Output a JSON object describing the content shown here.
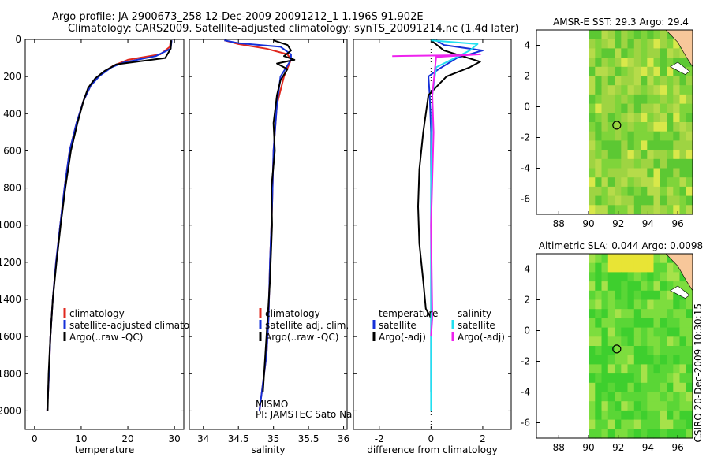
{
  "header": {
    "line1": "Argo profile: JA 2900673_258 12-Dec-2009 20091212_1 1.196S 91.902E",
    "line2": "Climatology: CARS2009. Satellite-adjusted climatology: synTS_20091214.nc (1.4d later)"
  },
  "colors": {
    "climatology": "#e0281e",
    "satellite": "#1530d8",
    "argo": "#000000",
    "satellite_salinity": "#22e0f0",
    "argo_adj_salinity": "#ee22ee",
    "land": "#f7c79a"
  },
  "credit": "CSIRO 20-Dec-2009 10:30:15",
  "chart_data": [
    {
      "type": "line",
      "id": "temperature",
      "xlabel": "temperature",
      "ylabel": "",
      "xlim": [
        -2,
        32
      ],
      "ylim": [
        2100,
        0
      ],
      "xticks": [
        0,
        10,
        20,
        30
      ],
      "yticks": [
        0,
        200,
        400,
        600,
        800,
        1000,
        1200,
        1400,
        1600,
        1800,
        2000
      ],
      "legend": [
        "climatology",
        "satellite-adjusted climatology",
        "Argo(..raw -QC)"
      ],
      "legend_position": "lower-right",
      "series": [
        {
          "name": "climatology",
          "color": "climatology",
          "x": [
            29.2,
            29.0,
            27.0,
            20.0,
            17.0,
            14.0,
            12.0,
            10.5,
            9.0,
            7.5,
            6.4,
            5.5,
            4.6,
            3.9,
            3.4,
            3.1,
            2.9,
            2.7
          ],
          "y": [
            5,
            40,
            80,
            110,
            140,
            190,
            250,
            330,
            450,
            600,
            800,
            1000,
            1200,
            1400,
            1600,
            1800,
            1900,
            2000
          ]
        },
        {
          "name": "satellite-adjusted climatology",
          "color": "satellite",
          "x": [
            29.4,
            29.2,
            26.0,
            19.0,
            16.5,
            14.0,
            12.0,
            10.5,
            9.0,
            7.5,
            6.4,
            5.5,
            4.6,
            3.9,
            3.4,
            3.1,
            2.9,
            2.7
          ],
          "y": [
            5,
            50,
            90,
            125,
            150,
            195,
            250,
            330,
            450,
            600,
            800,
            1000,
            1200,
            1400,
            1600,
            1800,
            1900,
            2000
          ]
        },
        {
          "name": "Argo(..raw -QC)",
          "color": "argo",
          "x": [
            29.3,
            29.2,
            28.0,
            22.0,
            17.5,
            15.0,
            13.0,
            11.5,
            10.5,
            9.2,
            7.8,
            6.6,
            5.6,
            4.7,
            3.9,
            3.4,
            3.0,
            2.8
          ],
          "y": [
            5,
            50,
            100,
            120,
            135,
            170,
            210,
            260,
            330,
            450,
            600,
            800,
            1000,
            1200,
            1400,
            1600,
            1800,
            2000
          ]
        }
      ]
    },
    {
      "type": "line",
      "id": "salinity",
      "xlabel": "salinity",
      "xlim": [
        33.8,
        36.05
      ],
      "ylim": [
        2100,
        0
      ],
      "xticks": [
        34,
        34.5,
        35,
        35.5,
        36
      ],
      "legend": [
        "climatology",
        "satellite adj. clim.",
        "Argo(..raw -QC)"
      ],
      "legend_position": "lower-right",
      "annotation": [
        "MISMO",
        "PI: JAMSTEC Sato Naoki"
      ],
      "series": [
        {
          "name": "climatology",
          "color": "climatology",
          "x": [
            34.3,
            34.5,
            34.9,
            35.2,
            35.25,
            35.15,
            35.05,
            35.0,
            34.98,
            34.95,
            34.93,
            34.9,
            34.85,
            34.8
          ],
          "y": [
            5,
            25,
            50,
            80,
            110,
            200,
            350,
            600,
            900,
            1200,
            1500,
            1700,
            1850,
            2000
          ]
        },
        {
          "name": "satellite adj. clim.",
          "color": "satellite",
          "x": [
            34.3,
            34.5,
            35.1,
            35.25,
            35.25,
            35.1,
            35.05,
            35.0,
            34.98,
            34.95,
            34.93,
            34.9,
            34.85,
            34.8
          ],
          "y": [
            5,
            20,
            40,
            80,
            110,
            200,
            350,
            600,
            900,
            1200,
            1500,
            1700,
            1850,
            2000
          ]
        },
        {
          "name": "Argo(..raw -QC)",
          "color": "argo",
          "x": [
            35.0,
            35.2,
            35.25,
            35.15,
            35.3,
            35.05,
            35.2,
            35.1,
            35.05,
            35.0,
            35.02,
            34.97,
            34.98,
            34.95,
            34.9,
            34.85
          ],
          "y": [
            5,
            30,
            60,
            90,
            110,
            130,
            160,
            220,
            300,
            450,
            600,
            800,
            1000,
            1300,
            1600,
            1900
          ]
        }
      ]
    },
    {
      "type": "line",
      "id": "difference",
      "xlabel": "difference from climatology",
      "xlim": [
        -3,
        3.1
      ],
      "ylim": [
        2100,
        0
      ],
      "xticks": [
        -2,
        0,
        2
      ],
      "legend": [
        "temperature",
        "satellite",
        "Argo(-adj)",
        "salinity",
        "satellite",
        "Argo(-adj)"
      ],
      "legend_position": "lower-center",
      "series": [
        {
          "name": "temperature satellite",
          "color": "satellite",
          "x": [
            0.2,
            0.5,
            2.0,
            1.0,
            0.3,
            -0.1,
            -0.05,
            0.0,
            0.0,
            0.0,
            0.0,
            0.0,
            0.0
          ],
          "y": [
            5,
            30,
            60,
            100,
            160,
            200,
            300,
            500,
            800,
            1100,
            1400,
            1700,
            1900
          ]
        },
        {
          "name": "temperature Argo(-adj)",
          "color": "argo",
          "x": [
            0.0,
            0.5,
            1.9,
            1.5,
            0.6,
            -0.1,
            -0.3,
            -0.45,
            -0.5,
            -0.45,
            -0.3,
            -0.2,
            0.0
          ],
          "y": [
            5,
            60,
            120,
            150,
            200,
            300,
            500,
            700,
            900,
            1100,
            1300,
            1450,
            1500
          ]
        },
        {
          "name": "salinity satellite",
          "color": "satellite_salinity",
          "x": [
            0.0,
            1.8,
            1.5,
            0.2,
            0.05,
            0.0,
            0.0,
            0.0
          ],
          "y": [
            5,
            25,
            60,
            150,
            300,
            800,
            1500,
            2000
          ]
        },
        {
          "name": "salinity Argo(-adj)",
          "color": "argo_adj_salinity",
          "x": [
            -1.5,
            1.2,
            1.9,
            0.2,
            0.05,
            0.1,
            0.0,
            0.05,
            0.0
          ],
          "y": [
            90,
            85,
            80,
            95,
            300,
            500,
            1000,
            1500,
            1600
          ]
        }
      ]
    },
    {
      "type": "heatmap",
      "id": "amse-sst",
      "title": "AMSR-E SST: 29.3 Argo: 29.4",
      "xlim": [
        86.5,
        97
      ],
      "ylim": [
        -7,
        5
      ],
      "xticks": [
        88,
        90,
        92,
        94,
        96
      ],
      "yticks": [
        4,
        2,
        0,
        -2,
        -4,
        -6
      ],
      "marker": {
        "lon": 91.9,
        "lat": -1.2
      }
    },
    {
      "type": "heatmap",
      "id": "altimetric-sla",
      "title": "Altimetric SLA: 0.044 Argo: 0.0098",
      "xlim": [
        86.5,
        97
      ],
      "ylim": [
        -7,
        5
      ],
      "xticks": [
        88,
        90,
        92,
        94,
        96
      ],
      "yticks": [
        4,
        2,
        0,
        -2,
        -4,
        -6
      ],
      "marker": {
        "lon": 91.9,
        "lat": -1.2
      }
    }
  ]
}
